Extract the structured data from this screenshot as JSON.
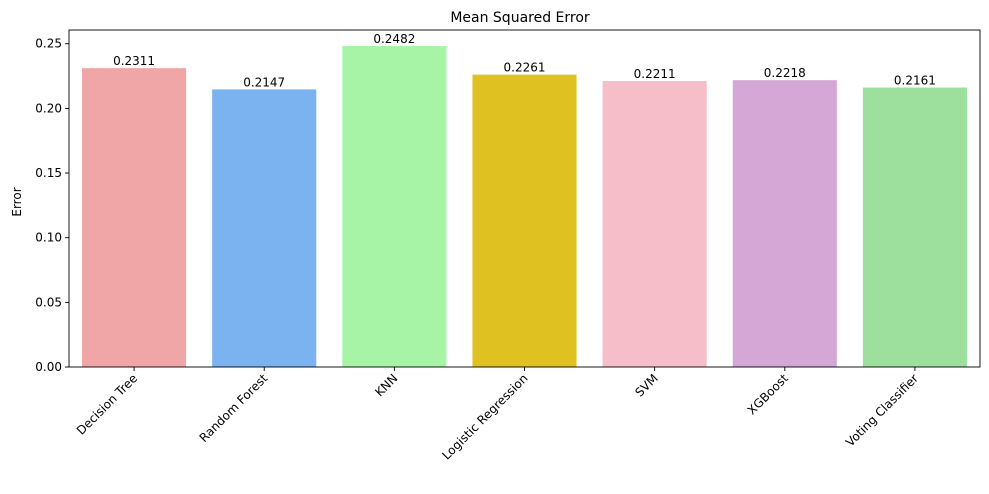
{
  "chart_data": {
    "type": "bar",
    "title": "Mean Squared Error",
    "xlabel": "",
    "ylabel": "Error",
    "ylim": [
      0,
      0.2606
    ],
    "yticks": [
      0.0,
      0.05,
      0.1,
      0.15,
      0.2,
      0.25
    ],
    "ytick_labels": [
      "0.00",
      "0.05",
      "0.10",
      "0.15",
      "0.20",
      "0.25"
    ],
    "categories": [
      "Decision Tree",
      "Random Forest",
      "KNN",
      "Logistic Regression",
      "SVM",
      "XGBoost",
      "Voting Classifier"
    ],
    "values": [
      0.2311,
      0.2147,
      0.2482,
      0.2261,
      0.2211,
      0.2218,
      0.2161
    ],
    "value_labels": [
      "0.2311",
      "0.2147",
      "0.2482",
      "0.2261",
      "0.2211",
      "0.2218",
      "0.2161"
    ],
    "colors": [
      "#f0a6a6",
      "#7ab3ef",
      "#a7f4a7",
      "#dfc221",
      "#f6bec8",
      "#d5a7d6",
      "#9de09d"
    ],
    "grid": false,
    "legend": "none"
  }
}
